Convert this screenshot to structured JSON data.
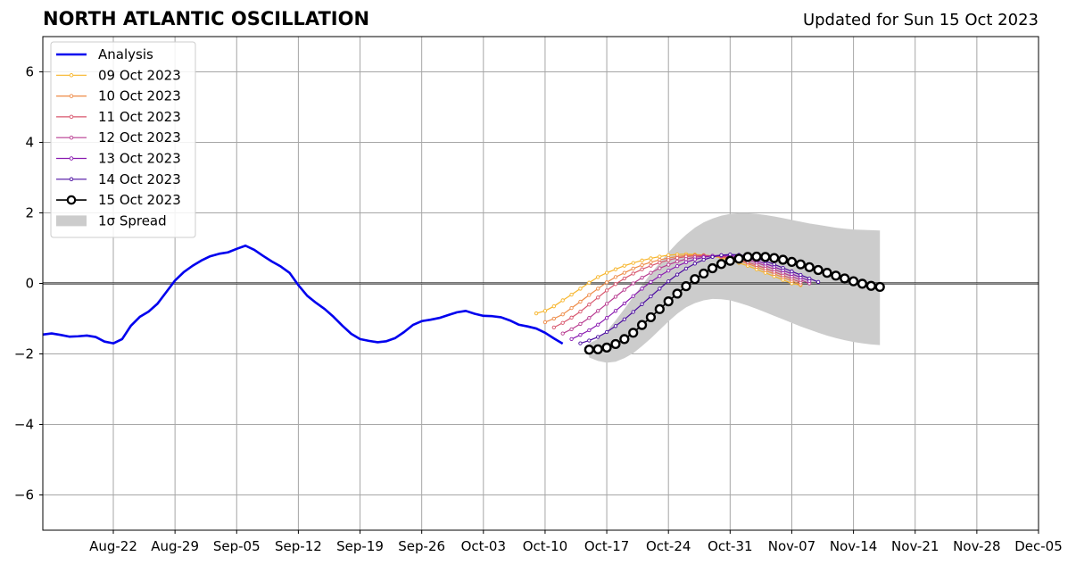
{
  "header": {
    "title": "NORTH ATLANTIC OSCILLATION",
    "updated": "Updated for Sun 15 Oct 2023"
  },
  "chart_data": {
    "type": "line",
    "title": "NORTH ATLANTIC OSCILLATION",
    "subtitle": "Updated for Sun 15 Oct 2023",
    "xlabel": "",
    "ylabel": "",
    "xlim": [
      "2023-08-14",
      "2023-12-05"
    ],
    "ylim": [
      -7,
      7
    ],
    "grid": true,
    "legend_position": "top-left",
    "x_ticks": [
      "Aug-22",
      "Aug-29",
      "Sep-05",
      "Sep-12",
      "Sep-19",
      "Sep-26",
      "Oct-03",
      "Oct-10",
      "Oct-17",
      "Oct-24",
      "Oct-31",
      "Nov-07",
      "Nov-14",
      "Nov-21",
      "Nov-28",
      "Dec-05"
    ],
    "y_ticks": [
      -6,
      -4,
      -2,
      0,
      2,
      4,
      6
    ],
    "y_tick_labels": [
      "−6",
      "−4",
      "−2",
      "0",
      "2",
      "4",
      "6"
    ],
    "analysis": {
      "name": "Analysis",
      "color": "#0000ee",
      "start": "2023-08-14",
      "values": [
        -1.45,
        -1.42,
        -1.46,
        -1.51,
        -1.5,
        -1.48,
        -1.52,
        -1.65,
        -1.7,
        -1.58,
        -1.2,
        -0.95,
        -0.8,
        -0.58,
        -0.25,
        0.08,
        0.32,
        0.5,
        0.65,
        0.77,
        0.84,
        0.88,
        0.98,
        1.07,
        0.95,
        0.78,
        0.62,
        0.48,
        0.3,
        -0.05,
        -0.35,
        -0.55,
        -0.73,
        -0.95,
        -1.2,
        -1.43,
        -1.58,
        -1.63,
        -1.67,
        -1.64,
        -1.55,
        -1.38,
        -1.18,
        -1.07,
        -1.03,
        -0.98,
        -0.9,
        -0.82,
        -0.78,
        -0.86,
        -0.92,
        -0.93,
        -0.96,
        -1.05,
        -1.17,
        -1.22,
        -1.28,
        -1.4,
        -1.56,
        -1.71
      ]
    },
    "forecasts": [
      {
        "name": "09 Oct 2023",
        "color": "#f7b52a",
        "start": "2023-10-09",
        "values": [
          -0.85,
          -0.78,
          -0.65,
          -0.48,
          -0.32,
          -0.15,
          0.02,
          0.18,
          0.3,
          0.4,
          0.5,
          0.58,
          0.65,
          0.71,
          0.76,
          0.8,
          0.82,
          0.83,
          0.82,
          0.8,
          0.77,
          0.72,
          0.66,
          0.58,
          0.5,
          0.4,
          0.3,
          0.2,
          0.1,
          0.0,
          -0.05
        ]
      },
      {
        "name": "10 Oct 2023",
        "color": "#ee8a46",
        "start": "2023-10-10",
        "values": [
          -1.1,
          -1.0,
          -0.88,
          -0.7,
          -0.52,
          -0.33,
          -0.15,
          0.03,
          0.18,
          0.3,
          0.42,
          0.52,
          0.6,
          0.67,
          0.72,
          0.76,
          0.79,
          0.8,
          0.8,
          0.78,
          0.75,
          0.7,
          0.64,
          0.56,
          0.47,
          0.37,
          0.27,
          0.17,
          0.07,
          -0.03
        ]
      },
      {
        "name": "11 Oct 2023",
        "color": "#d8566d",
        "start": "2023-10-11",
        "values": [
          -1.25,
          -1.12,
          -0.97,
          -0.8,
          -0.6,
          -0.4,
          -0.2,
          -0.02,
          0.14,
          0.28,
          0.4,
          0.5,
          0.59,
          0.66,
          0.72,
          0.76,
          0.78,
          0.79,
          0.78,
          0.76,
          0.72,
          0.67,
          0.6,
          0.52,
          0.43,
          0.33,
          0.23,
          0.13,
          0.03
        ]
      },
      {
        "name": "12 Oct 2023",
        "color": "#b83b90",
        "start": "2023-10-12",
        "values": [
          -1.42,
          -1.3,
          -1.15,
          -0.98,
          -0.78,
          -0.58,
          -0.38,
          -0.18,
          0.0,
          0.16,
          0.3,
          0.43,
          0.53,
          0.62,
          0.69,
          0.74,
          0.77,
          0.78,
          0.78,
          0.76,
          0.72,
          0.66,
          0.59,
          0.5,
          0.4,
          0.3,
          0.2,
          0.1,
          0.0
        ]
      },
      {
        "name": "13 Oct 2023",
        "color": "#8a1bb0",
        "start": "2023-10-13",
        "values": [
          -1.58,
          -1.46,
          -1.33,
          -1.17,
          -0.98,
          -0.78,
          -0.57,
          -0.36,
          -0.15,
          0.04,
          0.21,
          0.36,
          0.49,
          0.6,
          0.68,
          0.74,
          0.78,
          0.8,
          0.79,
          0.76,
          0.71,
          0.64,
          0.56,
          0.47,
          0.37,
          0.27,
          0.17,
          0.07
        ]
      },
      {
        "name": "14 Oct 2023",
        "color": "#4b0ca0",
        "start": "2023-10-14",
        "values": [
          -1.7,
          -1.62,
          -1.52,
          -1.38,
          -1.21,
          -1.02,
          -0.81,
          -0.59,
          -0.37,
          -0.15,
          0.06,
          0.25,
          0.42,
          0.56,
          0.67,
          0.75,
          0.8,
          0.82,
          0.81,
          0.77,
          0.71,
          0.63,
          0.54,
          0.44,
          0.34,
          0.24,
          0.14,
          0.04
        ]
      },
      {
        "name": "15 Oct 2023",
        "color": "#000000",
        "start": "2023-10-15",
        "values": [
          -1.88,
          -1.87,
          -1.82,
          -1.72,
          -1.58,
          -1.4,
          -1.18,
          -0.96,
          -0.73,
          -0.51,
          -0.29,
          -0.08,
          0.12,
          0.28,
          0.43,
          0.55,
          0.64,
          0.7,
          0.75,
          0.76,
          0.75,
          0.72,
          0.67,
          0.61,
          0.54,
          0.46,
          0.38,
          0.3,
          0.22,
          0.14,
          0.06,
          -0.01,
          -0.07,
          -0.1
        ]
      }
    ],
    "spread": {
      "name": "1σ Spread",
      "color": "#cccccc",
      "start": "2023-10-15",
      "upper": [
        -1.7,
        -1.58,
        -1.35,
        -1.05,
        -0.72,
        -0.38,
        -0.05,
        0.28,
        0.58,
        0.88,
        1.15,
        1.38,
        1.58,
        1.73,
        1.84,
        1.92,
        1.97,
        1.99,
        1.99,
        1.97,
        1.94,
        1.9,
        1.85,
        1.8,
        1.75,
        1.7,
        1.66,
        1.62,
        1.58,
        1.55,
        1.53,
        1.52,
        1.51,
        1.5
      ],
      "lower": [
        -2.1,
        -2.2,
        -2.25,
        -2.22,
        -2.12,
        -1.98,
        -1.78,
        -1.56,
        -1.32,
        -1.08,
        -0.86,
        -0.68,
        -0.56,
        -0.48,
        -0.44,
        -0.45,
        -0.48,
        -0.55,
        -0.63,
        -0.72,
        -0.82,
        -0.92,
        -1.02,
        -1.12,
        -1.22,
        -1.31,
        -1.4,
        -1.48,
        -1.55,
        -1.61,
        -1.66,
        -1.7,
        -1.73,
        -1.75
      ]
    }
  }
}
